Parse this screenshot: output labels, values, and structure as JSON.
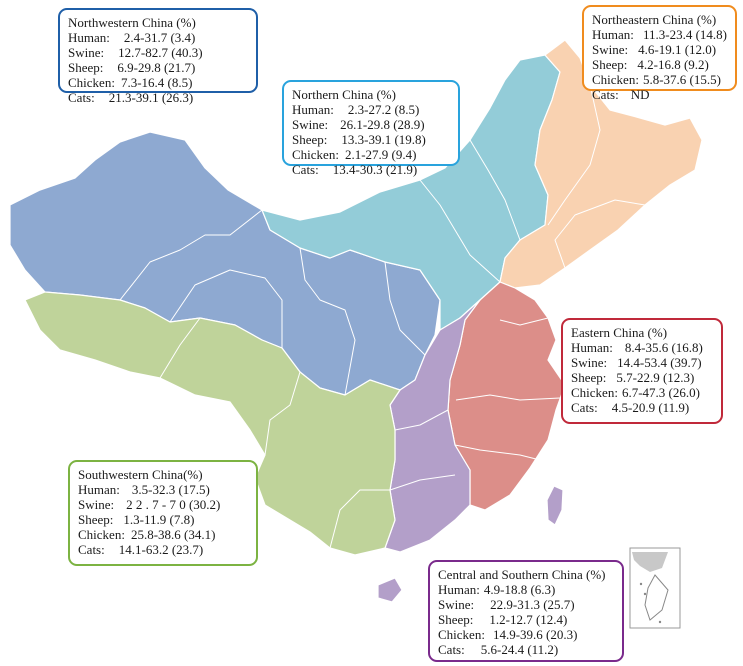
{
  "colors": {
    "northwestern": "#8ea9d1",
    "northern": "#93ccd8",
    "northeastern": "#f9d2b1",
    "eastern": "#dc8e89",
    "central_southern": "#b39fc9",
    "southwestern": "#bfd39a",
    "inset": "#c8c8c8",
    "border_northwestern": "#1f5fa8",
    "border_northern": "#29a3dd",
    "border_northeastern": "#f08c1e",
    "border_eastern": "#c0293a",
    "border_central_southern": "#7a2a8c",
    "border_southwestern": "#7cb342"
  },
  "regions": {
    "northwestern": {
      "title": "Northwestern China (%)",
      "rows": [
        {
          "label": "Human:",
          "value": "2.4-31.7 (3.4)"
        },
        {
          "label": "Swine:",
          "value": "12.7-82.7 (40.3)"
        },
        {
          "label": "Sheep:",
          "value": "6.9-29.8 (21.7)"
        },
        {
          "label": "Chicken:",
          "value": "7.3-16.4 (8.5)"
        },
        {
          "label": "Cats:",
          "value": "21.3-39.1 (26.3)"
        }
      ]
    },
    "northern": {
      "title": "Northern China (%)",
      "rows": [
        {
          "label": "Human:",
          "value": "2.3-27.2 (8.5)"
        },
        {
          "label": "Swine:",
          "value": "26.1-29.8  (28.9)"
        },
        {
          "label": "Sheep:",
          "value": "13.3-39.1 (19.8)"
        },
        {
          "label": "Chicken:",
          "value": "2.1-27.9 (9.4)"
        },
        {
          "label": "Cats:",
          "value": "13.4-30.3 (21.9)"
        }
      ]
    },
    "northeastern": {
      "title": "Northeastern China (%)",
      "rows": [
        {
          "label": "Human:",
          "value": "11.3-23.4 (14.8)"
        },
        {
          "label": "Swine:",
          "value": "4.6-19.1 (12.0)"
        },
        {
          "label": "Sheep:",
          "value": "4.2-16.8 (9.2)"
        },
        {
          "label": "Chicken:",
          "value": "5.8-37.6 (15.5)"
        },
        {
          "label": "Cats:",
          "value": "ND"
        }
      ]
    },
    "eastern": {
      "title": "Eastern China (%)",
      "rows": [
        {
          "label": "Human:",
          "value": "8.4-35.6 (16.8)"
        },
        {
          "label": "Swine:",
          "value": "14.4-53.4 (39.7)"
        },
        {
          "label": "Sheep:",
          "value": "5.7-22.9 (12.3)"
        },
        {
          "label": "Chicken:",
          "value": "6.7-47.3 (26.0)"
        },
        {
          "label": "Cats:",
          "value": "4.5-20.9 (11.9)"
        }
      ]
    },
    "southwestern": {
      "title": "Southwestern China(%)",
      "rows": [
        {
          "label": "Human:",
          "value": "3.5-32.3 (17.5)"
        },
        {
          "label": "Swine:",
          "value": "2 2 . 7 - 7 0 (30.2)"
        },
        {
          "label": "Sheep:",
          "value": "1.3-11.9 (7.8)"
        },
        {
          "label": "Chicken:",
          "value": "25.8-38.6 (34.1)"
        },
        {
          "label": "Cats:",
          "value": "14.1-63.2 (23.7)"
        }
      ]
    },
    "central_southern": {
      "title": "Central and Southern China (%)",
      "rows": [
        {
          "label": "Human:",
          "value": "4.9-18.8 (6.3)"
        },
        {
          "label": "Swine:",
          "value": "22.9-31.3 (25.7)"
        },
        {
          "label": "Sheep:",
          "value": "1.2-12.7 (12.4)"
        },
        {
          "label": "Chicken:",
          "value": "14.9-39.6 (20.3)"
        },
        {
          "label": "Cats:",
          "value": "5.6-24.4 (11.2)"
        }
      ]
    }
  }
}
